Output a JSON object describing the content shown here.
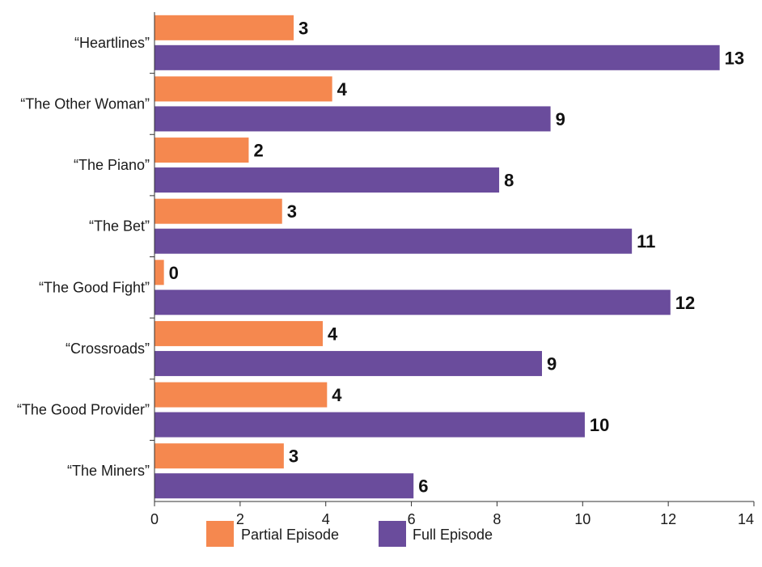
{
  "chart_data": {
    "type": "bar",
    "orientation": "horizontal",
    "categories": [
      "“Heartlines”",
      "“The Other Woman”",
      "“The Piano”",
      "“The Bet”",
      "“The Good Fight”",
      "“Crossroads”",
      "“The Good Provider”",
      "“The Miners”"
    ],
    "series": [
      {
        "name": "Partial Episode",
        "color": "#F5884F",
        "values": [
          3.25,
          4.15,
          2.2,
          2.98,
          0.22,
          3.93,
          4.03,
          3.02
        ],
        "labels": [
          "3",
          "4",
          "2",
          "3",
          "0",
          "4",
          "4",
          "3"
        ]
      },
      {
        "name": "Full Episode",
        "color": "#6A4C9C",
        "values": [
          13.2,
          9.25,
          8.05,
          11.15,
          12.05,
          9.05,
          10.05,
          6.05
        ],
        "labels": [
          "13",
          "9",
          "8",
          "11",
          "12",
          "9",
          "10",
          "6"
        ]
      }
    ],
    "xlim": [
      0,
      14
    ],
    "xticks": [
      "0",
      "2",
      "4",
      "6",
      "8",
      "10",
      "12",
      "14"
    ],
    "xlabel": "",
    "ylabel": "",
    "title": "",
    "grid": false,
    "legend_position": "bottom"
  }
}
